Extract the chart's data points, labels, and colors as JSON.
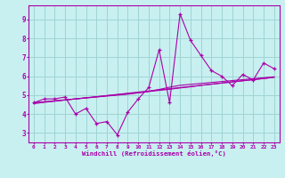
{
  "xlabel": "Windchill (Refroidissement éolien,°C)",
  "background_color": "#c8f0f0",
  "grid_color": "#a0d4d4",
  "line_color": "#aa00aa",
  "xlim": [
    -0.5,
    23.5
  ],
  "ylim": [
    2.5,
    9.75
  ],
  "xticks": [
    0,
    1,
    2,
    3,
    4,
    5,
    6,
    7,
    8,
    9,
    10,
    11,
    12,
    13,
    14,
    15,
    16,
    17,
    18,
    19,
    20,
    21,
    22,
    23
  ],
  "yticks": [
    3,
    4,
    5,
    6,
    7,
    8,
    9
  ],
  "main_series_x": [
    0,
    1,
    2,
    3,
    4,
    5,
    6,
    7,
    8,
    9,
    10,
    11,
    12,
    13,
    14,
    15,
    16,
    17,
    18,
    19,
    20,
    21,
    22,
    23
  ],
  "main_series_y": [
    4.6,
    4.8,
    4.8,
    4.9,
    4.0,
    4.3,
    3.5,
    3.6,
    2.9,
    4.1,
    4.8,
    5.4,
    7.4,
    4.6,
    9.3,
    7.9,
    7.1,
    6.3,
    6.0,
    5.5,
    6.1,
    5.8,
    6.7,
    6.4
  ],
  "reg_line1_y": [
    4.55,
    4.62,
    4.68,
    4.74,
    4.8,
    4.86,
    4.92,
    4.98,
    5.04,
    5.1,
    5.16,
    5.22,
    5.28,
    5.34,
    5.4,
    5.46,
    5.52,
    5.58,
    5.64,
    5.7,
    5.76,
    5.82,
    5.88,
    5.94
  ],
  "reg_line2_y": [
    4.58,
    4.64,
    4.69,
    4.75,
    4.8,
    4.86,
    4.91,
    4.97,
    5.02,
    5.08,
    5.13,
    5.19,
    5.25,
    5.31,
    5.38,
    5.44,
    5.52,
    5.58,
    5.64,
    5.7,
    5.76,
    5.82,
    5.88,
    5.95
  ],
  "reg_line3_y": [
    4.6,
    4.65,
    4.7,
    4.75,
    4.8,
    4.85,
    4.9,
    4.95,
    5.0,
    5.05,
    5.12,
    5.2,
    5.3,
    5.42,
    5.52,
    5.57,
    5.62,
    5.67,
    5.72,
    5.77,
    5.82,
    5.87,
    5.92,
    5.97
  ]
}
